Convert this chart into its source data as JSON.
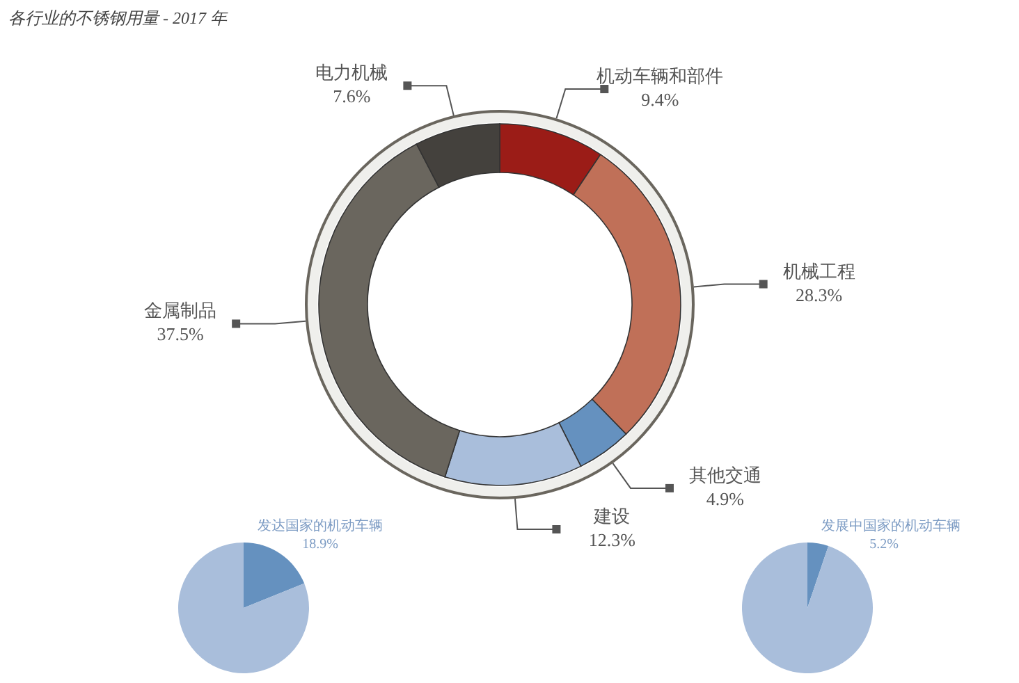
{
  "chart_data": [
    {
      "type": "donut",
      "title": "各行业的不锈钢用量 - 2017 年",
      "categories": [
        "机动车辆和部件",
        "机械工程",
        "其他交通",
        "建设",
        "金属制品",
        "电力机械"
      ],
      "values": [
        9.4,
        28.3,
        4.9,
        12.3,
        37.5,
        7.6
      ],
      "colors": [
        "#9b1c17",
        "#c07058",
        "#6591bf",
        "#a9bedb",
        "#6a665e",
        "#44413d"
      ],
      "value_labels": [
        "9.4%",
        "28.3%",
        "4.9%",
        "12.3%",
        "37.5%",
        "7.6%"
      ]
    },
    {
      "type": "pie",
      "categories": [
        "发达国家的机动车辆",
        null
      ],
      "values": [
        18.9,
        81.1
      ],
      "colors": [
        "#6591bf",
        "#a9bedb"
      ],
      "value_labels": [
        "18.9%",
        null
      ]
    },
    {
      "type": "pie",
      "categories": [
        "发展中国家的机动车辆",
        null
      ],
      "values": [
        5.2,
        94.8
      ],
      "colors": [
        "#6591bf",
        "#a9bedb"
      ],
      "value_labels": [
        "5.2%",
        null
      ]
    }
  ]
}
